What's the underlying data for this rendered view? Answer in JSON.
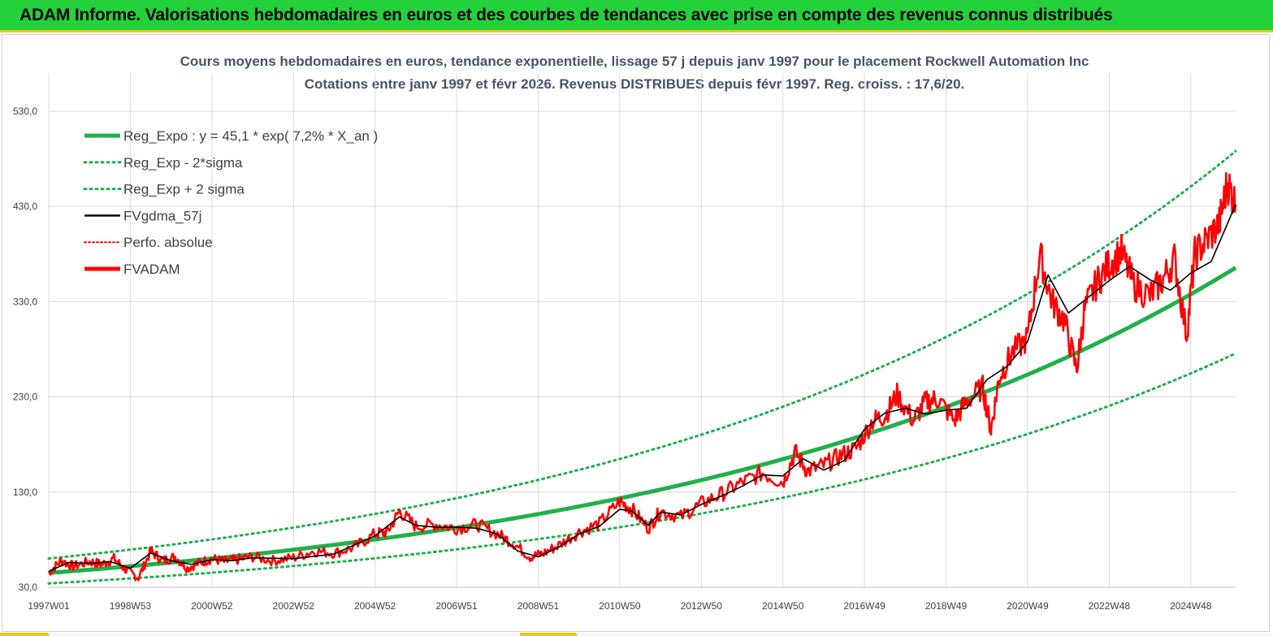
{
  "banner": {
    "title": "ADAM Informe. Valorisations hebdomadaires en euros et des courbes de tendances avec prise en compte des revenus connus distribués"
  },
  "colors": {
    "banner_bg": "#24d13a",
    "reg_green": "#1fb04a",
    "fvadam_red": "#ff0000",
    "gdma_black": "#000000",
    "title_text": "#44546a"
  },
  "chart_data": {
    "type": "line",
    "title": [
      "Cours moyens hebdomadaires en euros, tendance exponentielle, lissage 57 j depuis janv 1997 pour le placement Rockwell Automation Inc",
      "Cotations entre janv 1997 et févr 2026. Revenus DISTRIBUES depuis févr 1997. Reg. croiss. : 17,6/20."
    ],
    "xlabel": "",
    "ylabel": "",
    "x_range": [
      1997.0,
      2026.1
    ],
    "ylim": [
      30,
      570
    ],
    "y_ticks": [
      "30,0",
      "130,0",
      "230,0",
      "330,0",
      "430,0",
      "530,0"
    ],
    "y_tick_values": [
      30,
      130,
      230,
      330,
      430,
      530
    ],
    "x_ticks": [
      "1997W01",
      "1998W53",
      "2000W52",
      "2002W52",
      "2004W52",
      "2006W51",
      "2008W51",
      "2010W50",
      "2012W50",
      "2014W50",
      "2016W49",
      "2018W49",
      "2020W49",
      "2022W48",
      "2024W48"
    ],
    "x_tick_values": [
      1997.0,
      1999.0,
      2001.0,
      2003.0,
      2005.0,
      2007.0,
      2009.0,
      2011.0,
      2013.0,
      2015.0,
      2017.0,
      2019.0,
      2021.0,
      2023.0,
      2025.0
    ],
    "legend": [
      {
        "label": "Reg_Expo : y = 45,1 * exp( 7,2% *  X_an )",
        "style": "solid-thick",
        "color": "#1fb04a"
      },
      {
        "label": "Reg_Exp - 2*sigma",
        "style": "dotted",
        "color": "#1fb04a"
      },
      {
        "label": "Reg_Exp + 2 sigma",
        "style": "dotted",
        "color": "#1fb04a"
      },
      {
        "label": "FVgdma_57j",
        "style": "solid",
        "color": "#000000"
      },
      {
        "label": "Perfo. absolue",
        "style": "dotted",
        "color": "#ff0000"
      },
      {
        "label": "FVADAM",
        "style": "solid-thick",
        "color": "#ff0000"
      }
    ],
    "series": [
      {
        "name": "Reg_Expo",
        "x": [
          1997.0,
          1999.0,
          2001.0,
          2003.0,
          2005.0,
          2007.0,
          2009.0,
          2011.0,
          2013.0,
          2015.0,
          2017.0,
          2019.0,
          2021.0,
          2023.0,
          2025.0,
          2026.1
        ],
        "values": [
          45.1,
          52.1,
          60.1,
          69.4,
          80.1,
          92.5,
          106.8,
          123.4,
          142.5,
          164.5,
          190.0,
          219.4,
          253.4,
          292.6,
          337.9,
          365.6
        ]
      },
      {
        "name": "Reg_Exp - 2*sigma",
        "x": [
          1997.0,
          1999.0,
          2001.0,
          2003.0,
          2005.0,
          2007.0,
          2009.0,
          2011.0,
          2013.0,
          2015.0,
          2017.0,
          2019.0,
          2021.0,
          2023.0,
          2025.0,
          2026.1
        ],
        "values": [
          34.0,
          39.3,
          45.4,
          52.4,
          60.5,
          69.8,
          80.6,
          93.1,
          107.5,
          124.2,
          143.4,
          165.6,
          191.2,
          220.8,
          255.0,
          275.9
        ]
      },
      {
        "name": "Reg_Exp + 2 sigma",
        "x": [
          1997.0,
          1999.0,
          2001.0,
          2003.0,
          2005.0,
          2007.0,
          2009.0,
          2011.0,
          2013.0,
          2015.0,
          2017.0,
          2019.0,
          2021.0,
          2023.0,
          2025.0,
          2026.1
        ],
        "values": [
          60.2,
          69.5,
          80.3,
          92.7,
          107.0,
          123.6,
          142.7,
          164.8,
          190.3,
          219.8,
          253.8,
          293.0,
          338.4,
          390.8,
          451.3,
          488.3
        ]
      },
      {
        "name": "FVgdma_57j",
        "x": [
          1997.0,
          1997.5,
          1998.0,
          1998.5,
          1999.0,
          1999.5,
          2000.0,
          2000.5,
          2001.0,
          2001.5,
          2002.0,
          2003.0,
          2004.0,
          2005.0,
          2005.6,
          2006.0,
          2006.5,
          2007.0,
          2007.5,
          2008.0,
          2008.5,
          2009.0,
          2009.5,
          2010.0,
          2010.5,
          2011.0,
          2011.3,
          2011.7,
          2012.0,
          2012.5,
          2013.0,
          2013.5,
          2014.0,
          2014.5,
          2015.0,
          2015.5,
          2016.0,
          2016.5,
          2017.0,
          2017.5,
          2018.0,
          2018.5,
          2019.0,
          2019.5,
          2020.0,
          2020.5,
          2021.0,
          2021.5,
          2022.0,
          2022.5,
          2023.0,
          2023.5,
          2024.0,
          2024.5,
          2025.0,
          2025.5,
          2026.1
        ],
        "values": [
          47,
          56,
          55,
          57,
          50,
          66,
          58,
          54,
          59,
          58,
          61,
          60,
          65,
          84,
          104,
          95,
          93,
          93,
          92,
          86,
          68,
          62,
          72,
          86,
          94,
          112,
          110,
          95,
          109,
          106,
          117,
          126,
          136,
          148,
          147,
          165,
          153,
          163,
          196,
          213,
          218,
          212,
          216,
          218,
          248,
          262,
          288,
          358,
          318,
          335,
          352,
          367,
          353,
          342,
          360,
          372,
          432
        ]
      },
      {
        "name": "FVADAM",
        "x": [
          1997.0,
          1997.3,
          1997.6,
          1998.0,
          1998.3,
          1998.6,
          1998.9,
          1999.2,
          1999.5,
          1999.8,
          2000.1,
          2000.4,
          2000.7,
          2001.0,
          2001.3,
          2001.6,
          2002.0,
          2002.5,
          2003.0,
          2003.5,
          2004.0,
          2004.5,
          2005.0,
          2005.3,
          2005.6,
          2006.0,
          2006.5,
          2007.0,
          2007.5,
          2008.0,
          2008.4,
          2008.8,
          2009.1,
          2009.5,
          2010.0,
          2010.5,
          2011.0,
          2011.3,
          2011.7,
          2012.0,
          2012.5,
          2013.0,
          2013.5,
          2014.0,
          2014.5,
          2015.0,
          2015.3,
          2015.6,
          2016.0,
          2016.4,
          2016.8,
          2017.2,
          2017.5,
          2017.8,
          2018.2,
          2018.5,
          2018.8,
          2019.2,
          2019.5,
          2019.9,
          2020.1,
          2020.3,
          2020.6,
          2021.0,
          2021.3,
          2021.6,
          2021.9,
          2022.2,
          2022.4,
          2022.7,
          2023.0,
          2023.3,
          2023.6,
          2024.0,
          2024.3,
          2024.6,
          2024.9,
          2025.1,
          2025.4,
          2025.7,
          2025.9,
          2026.1
        ],
        "values": [
          45,
          58,
          52,
          57,
          54,
          60,
          48,
          40,
          68,
          58,
          62,
          50,
          56,
          60,
          57,
          59,
          62,
          58,
          61,
          68,
          66,
          72,
          86,
          88,
          110,
          94,
          96,
          92,
          96,
          86,
          76,
          62,
          65,
          74,
          88,
          97,
          120,
          112,
          92,
          110,
          104,
          118,
          128,
          140,
          150,
          140,
          172,
          152,
          158,
          168,
          176,
          205,
          210,
          232,
          205,
          225,
          228,
          205,
          225,
          240,
          195,
          250,
          275,
          292,
          380,
          330,
          310,
          258,
          322,
          350,
          370,
          382,
          348,
          336,
          352,
          375,
          295,
          380,
          395,
          412,
          455,
          432
        ]
      }
    ]
  }
}
